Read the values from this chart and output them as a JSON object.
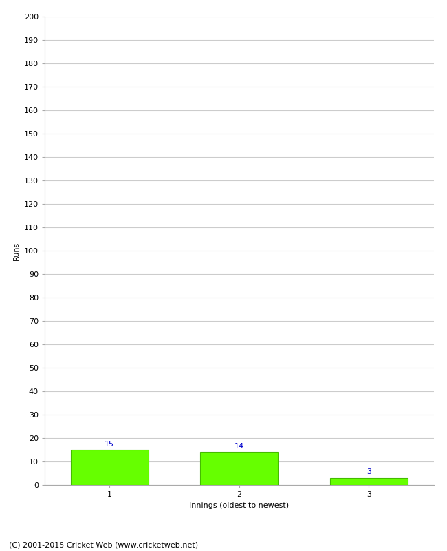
{
  "categories": [
    1,
    2,
    3
  ],
  "values": [
    15,
    14,
    3
  ],
  "bar_color": "#66ff00",
  "bar_edge_color": "#44bb00",
  "label_color": "#0000cc",
  "ylabel": "Runs",
  "xlabel": "Innings (oldest to newest)",
  "ylim": [
    0,
    200
  ],
  "ytick_step": 10,
  "background_color": "#ffffff",
  "grid_color": "#cccccc",
  "footer_text": "(C) 2001-2015 Cricket Web (www.cricketweb.net)",
  "label_fontsize": 8,
  "axis_fontsize": 8,
  "footer_fontsize": 8
}
